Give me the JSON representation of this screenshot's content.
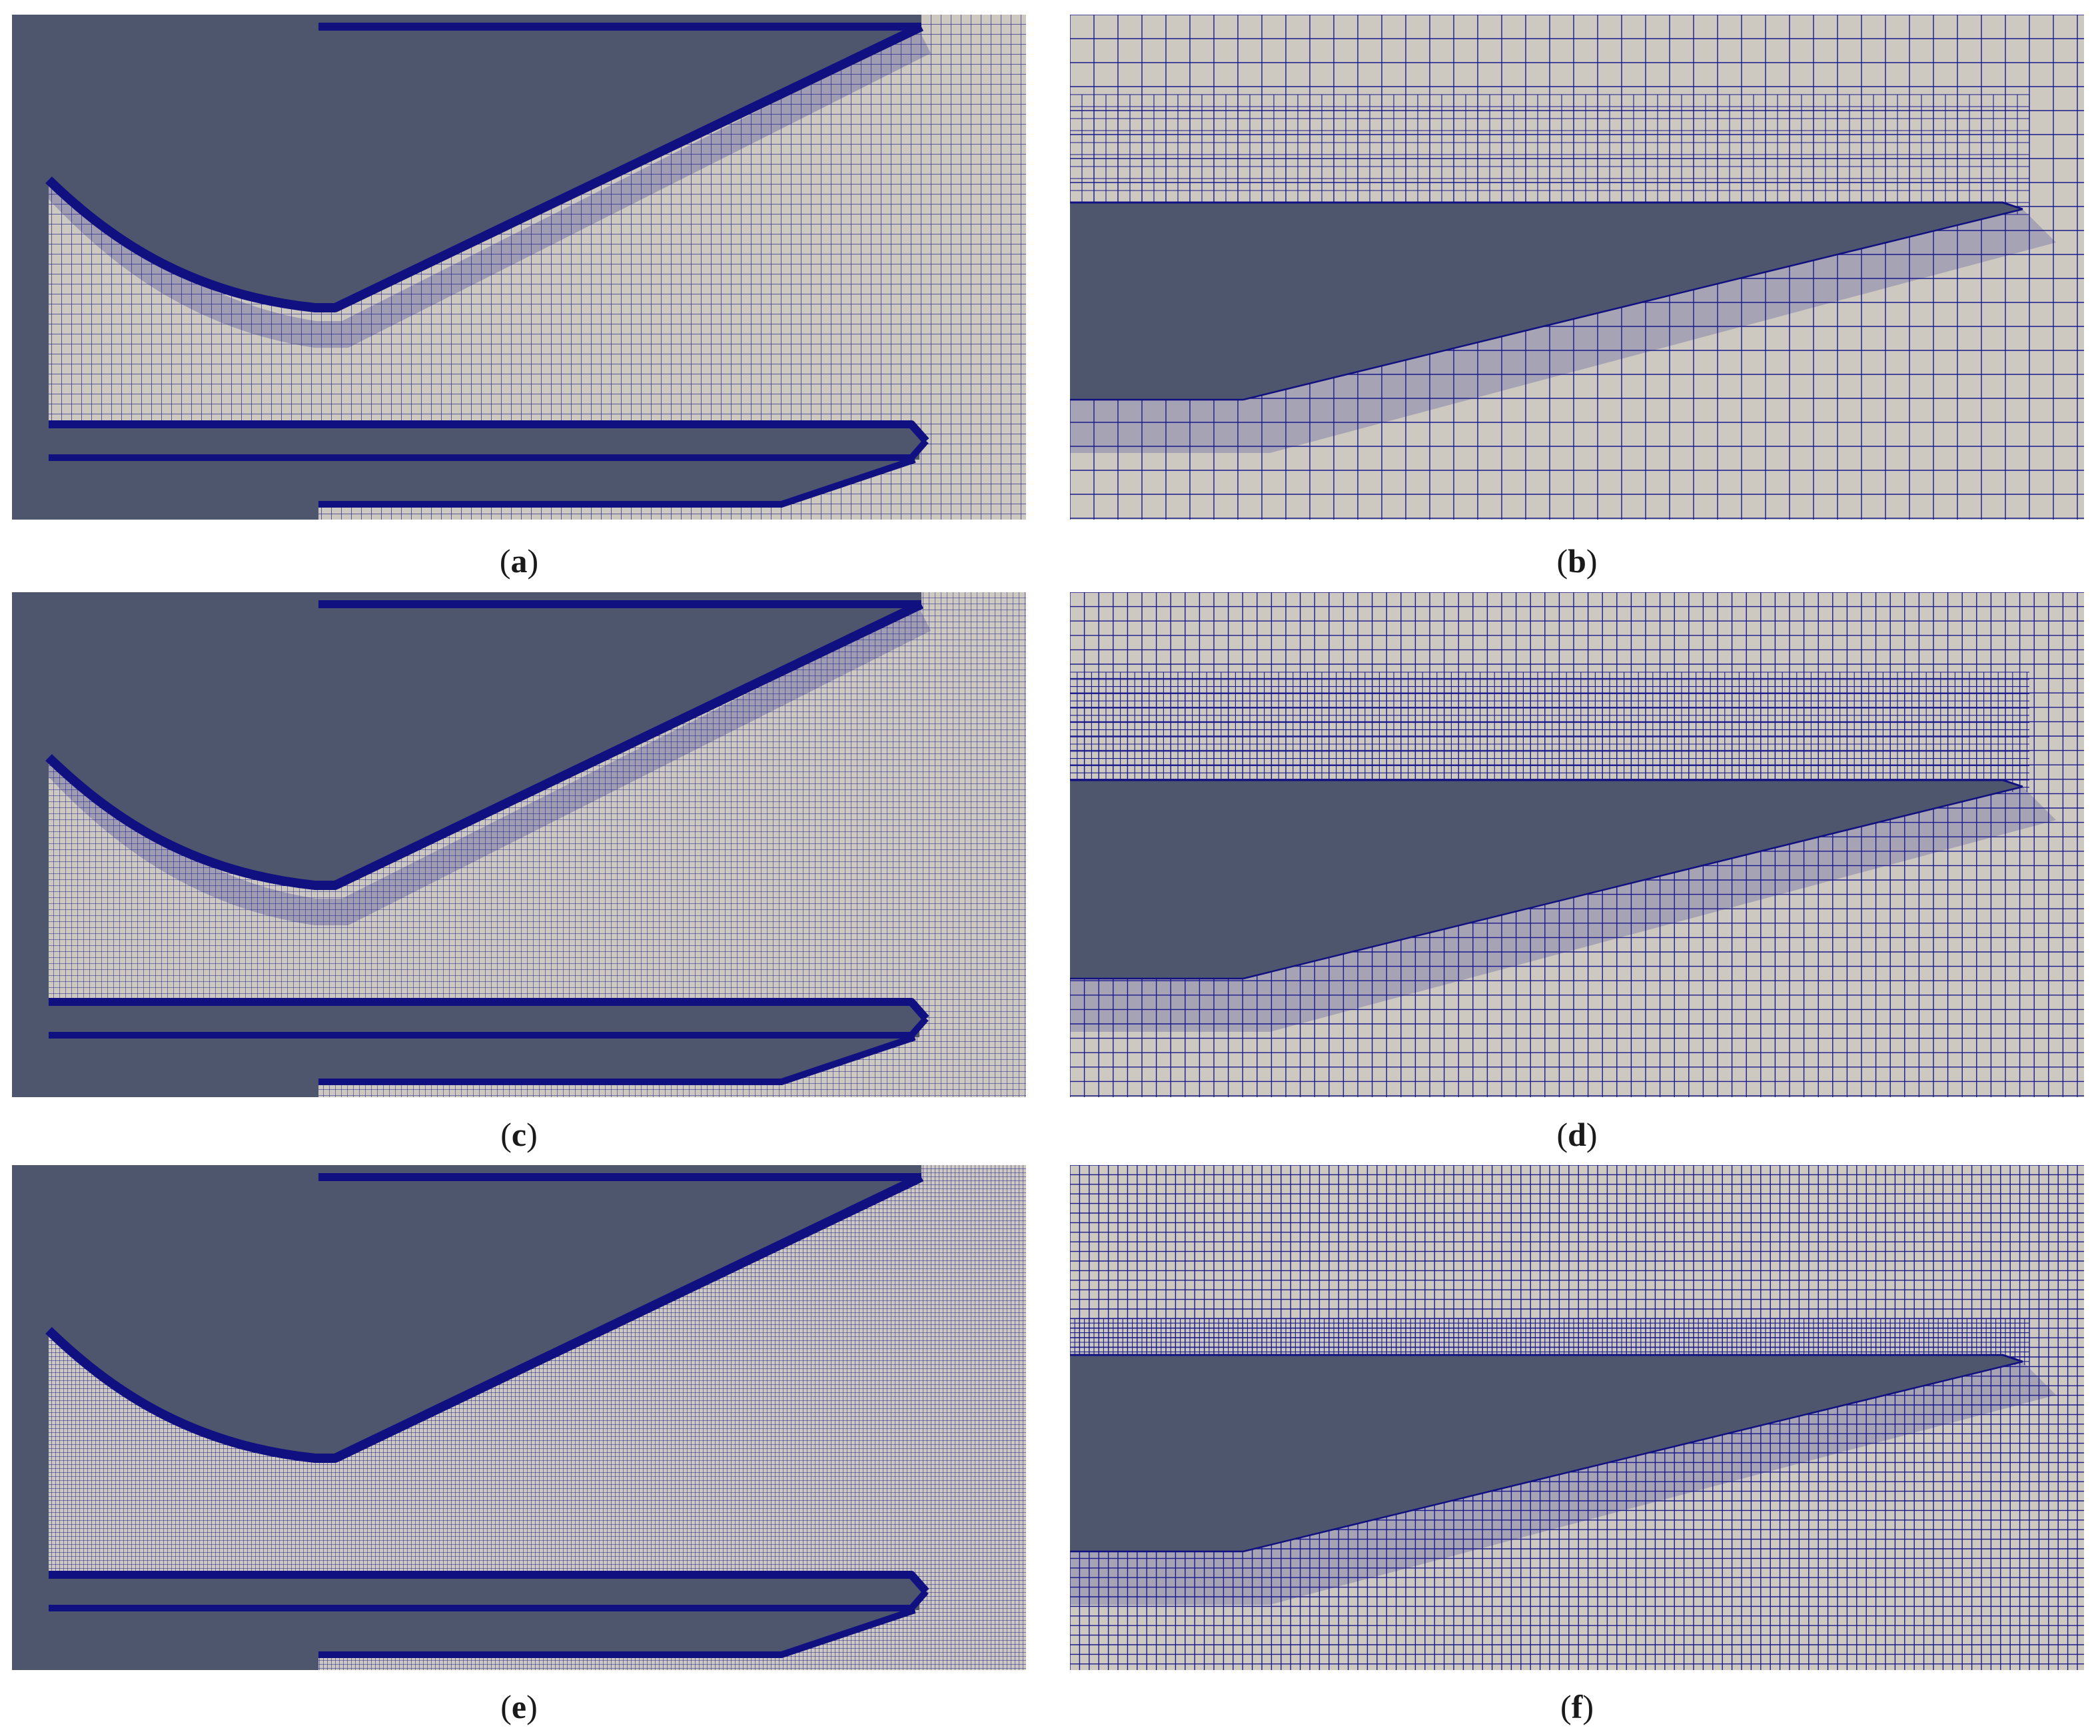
{
  "figure": {
    "panels": [
      {
        "id": "a",
        "caption_letter": "a",
        "view": "overview",
        "refinement": "coarse"
      },
      {
        "id": "b",
        "caption_letter": "b",
        "view": "closeup",
        "refinement": "coarse"
      },
      {
        "id": "c",
        "caption_letter": "c",
        "view": "overview",
        "refinement": "medium"
      },
      {
        "id": "d",
        "caption_letter": "d",
        "view": "closeup",
        "refinement": "medium"
      },
      {
        "id": "e",
        "caption_letter": "e",
        "view": "overview",
        "refinement": "fine"
      },
      {
        "id": "f",
        "caption_letter": "f",
        "view": "closeup",
        "refinement": "fine"
      }
    ]
  },
  "colors": {
    "solid": "#4e566e",
    "fluid": "#cdc9c1",
    "mesh_line": "#1a1a8c",
    "boundary_layer": "#101080"
  }
}
